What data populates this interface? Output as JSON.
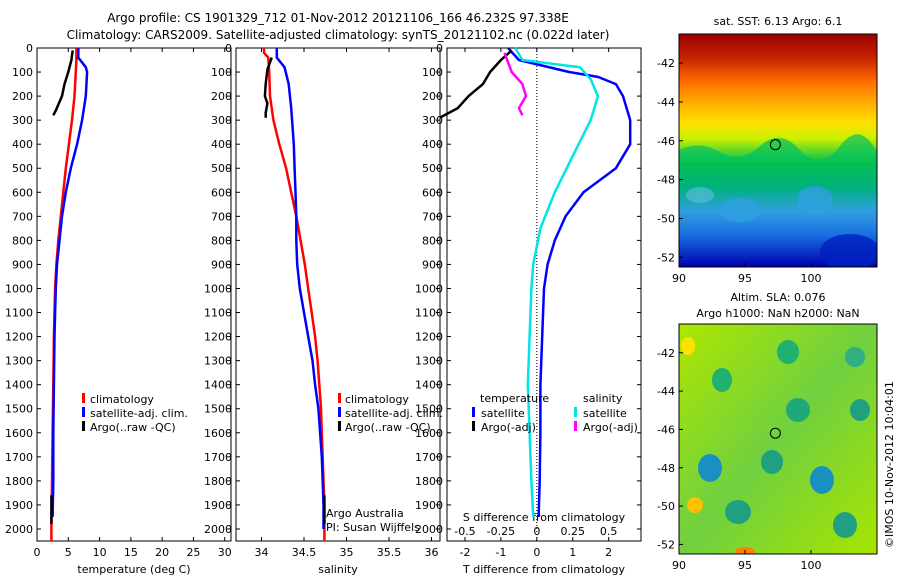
{
  "header": {
    "title_line1": "Argo profile: CS 1901329_712 01-Nov-2012 20121106_166 46.232S 97.338E",
    "title_line2": "Climatology: CARS2009. Satellite-adjusted climatology: synTS_20121102.nc (0.022d later)"
  },
  "colors": {
    "climatology": "#ff0000",
    "satellite_adj": "#0000ff",
    "argo": "#000000",
    "salinity_satellite": "#00e5e5",
    "salinity_argo": "#ff00ff"
  },
  "depth_axis": {
    "ticks": [
      "0",
      "100",
      "200",
      "300",
      "400",
      "500",
      "600",
      "700",
      "800",
      "900",
      "1000",
      "1100",
      "1200",
      "1300",
      "1400",
      "1500",
      "1600",
      "1700",
      "1800",
      "1900",
      "2000"
    ],
    "ylim": [
      0,
      2050
    ],
    "reversed": true
  },
  "chart_data": [
    {
      "type": "line",
      "name": "temperature-panel",
      "xlabel": "temperature (deg C)",
      "xlim": [
        0,
        31
      ],
      "xticks": [
        "0",
        "5",
        "10",
        "15",
        "20",
        "25",
        "30"
      ],
      "legend": [
        "climatology",
        "satellite-adj. clim.",
        "Argo(..raw -QC)"
      ],
      "series": [
        {
          "name": "climatology",
          "color": "#ff0000",
          "points": [
            [
              6.3,
              0
            ],
            [
              6.3,
              50
            ],
            [
              6.2,
              100
            ],
            [
              6.0,
              200
            ],
            [
              5.6,
              300
            ],
            [
              5.1,
              400
            ],
            [
              4.6,
              500
            ],
            [
              4.2,
              600
            ],
            [
              3.8,
              700
            ],
            [
              3.4,
              800
            ],
            [
              3.1,
              900
            ],
            [
              2.9,
              1000
            ],
            [
              2.8,
              1100
            ],
            [
              2.7,
              1200
            ],
            [
              2.6,
              1400
            ],
            [
              2.5,
              1600
            ],
            [
              2.4,
              1800
            ],
            [
              2.3,
              2000
            ],
            [
              2.3,
              2050
            ]
          ]
        },
        {
          "name": "satellite-adj. clim.",
          "color": "#0000ff",
          "points": [
            [
              6.6,
              0
            ],
            [
              6.6,
              40
            ],
            [
              7.8,
              80
            ],
            [
              8.0,
              100
            ],
            [
              7.8,
              200
            ],
            [
              7.2,
              300
            ],
            [
              6.4,
              400
            ],
            [
              5.4,
              500
            ],
            [
              4.6,
              600
            ],
            [
              4.0,
              700
            ],
            [
              3.6,
              800
            ],
            [
              3.2,
              900
            ],
            [
              3.0,
              1000
            ],
            [
              2.9,
              1100
            ],
            [
              2.8,
              1200
            ],
            [
              2.7,
              1400
            ],
            [
              2.6,
              1600
            ],
            [
              2.6,
              1800
            ],
            [
              2.5,
              1950
            ]
          ]
        },
        {
          "name": "Argo(..raw -QC)",
          "color": "#000000",
          "points": [
            [
              5.7,
              10
            ],
            [
              5.5,
              50
            ],
            [
              5.0,
              100
            ],
            [
              4.4,
              150
            ],
            [
              4.0,
              200
            ],
            [
              3.5,
              230
            ],
            [
              3.0,
              260
            ],
            [
              2.6,
              280
            ]
          ]
        },
        {
          "name": "Argo-deep",
          "color": "#000000",
          "points": [
            [
              2.3,
              1860
            ],
            [
              2.3,
              1980
            ]
          ]
        }
      ]
    },
    {
      "type": "line",
      "name": "salinity-panel",
      "xlabel": "salinity",
      "xlim": [
        33.7,
        36.1
      ],
      "xticks": [
        "34",
        "34.5",
        "35",
        "35.5",
        "36"
      ],
      "legend": [
        "climatology",
        "satellite-adj. clim.",
        "Argo(..raw -QC)"
      ],
      "annotations": [
        "Argo Australia",
        "PI: Susan Wijffels"
      ],
      "series": [
        {
          "name": "climatology",
          "color": "#ff0000",
          "points": [
            [
              34.03,
              0
            ],
            [
              34.03,
              20
            ],
            [
              34.08,
              40
            ],
            [
              34.09,
              100
            ],
            [
              34.1,
              200
            ],
            [
              34.14,
              300
            ],
            [
              34.21,
              400
            ],
            [
              34.29,
              500
            ],
            [
              34.35,
              600
            ],
            [
              34.41,
              700
            ],
            [
              34.46,
              800
            ],
            [
              34.51,
              900
            ],
            [
              34.55,
              1000
            ],
            [
              34.59,
              1100
            ],
            [
              34.63,
              1200
            ],
            [
              34.66,
              1300
            ],
            [
              34.68,
              1400
            ],
            [
              34.7,
              1500
            ],
            [
              34.71,
              1600
            ],
            [
              34.72,
              1700
            ],
            [
              34.73,
              1800
            ],
            [
              34.74,
              1900
            ],
            [
              34.74,
              2050
            ]
          ]
        },
        {
          "name": "satellite-adj. clim.",
          "color": "#0000ff",
          "points": [
            [
              34.18,
              0
            ],
            [
              34.18,
              40
            ],
            [
              34.27,
              80
            ],
            [
              34.32,
              150
            ],
            [
              34.35,
              250
            ],
            [
              34.38,
              400
            ],
            [
              34.39,
              500
            ],
            [
              34.4,
              600
            ],
            [
              34.41,
              700
            ],
            [
              34.41,
              800
            ],
            [
              34.42,
              900
            ],
            [
              34.45,
              1000
            ],
            [
              34.5,
              1100
            ],
            [
              34.55,
              1200
            ],
            [
              34.6,
              1300
            ],
            [
              34.63,
              1400
            ],
            [
              34.67,
              1500
            ],
            [
              34.69,
              1600
            ],
            [
              34.71,
              1700
            ],
            [
              34.72,
              1800
            ],
            [
              34.73,
              1900
            ],
            [
              34.73,
              2000
            ]
          ]
        },
        {
          "name": "Argo(..raw -QC)",
          "color": "#000000",
          "points": [
            [
              34.12,
              40
            ],
            [
              34.07,
              90
            ],
            [
              34.05,
              150
            ],
            [
              34.04,
              200
            ],
            [
              34.07,
              230
            ],
            [
              34.05,
              270
            ],
            [
              34.05,
              290
            ]
          ]
        },
        {
          "name": "Argo-deep",
          "color": "#000000",
          "points": [
            [
              34.74,
              1860
            ],
            [
              34.74,
              1980
            ]
          ]
        }
      ]
    },
    {
      "type": "line",
      "name": "difference-panel",
      "xlabel": "T difference from climatology",
      "xlabel_top": "S difference from climatology",
      "xlim": [
        -2.5,
        2.9
      ],
      "xticks": [
        "-2",
        "-1",
        "0",
        "1",
        "2"
      ],
      "xticks_salinity": [
        "-0.5",
        "-0.25",
        "0",
        "0.25",
        "0.5"
      ],
      "legend_headers": [
        "temperature",
        "salinity"
      ],
      "legend": [
        "satellite",
        "Argo(-adj)",
        "satellite",
        "Argo(-adj)"
      ],
      "series": [
        {
          "name": "temperature satellite",
          "color": "#0000ff",
          "points": [
            [
              -0.8,
              0
            ],
            [
              -0.5,
              50
            ],
            [
              0.9,
              100
            ],
            [
              1.7,
              120
            ],
            [
              2.2,
              150
            ],
            [
              2.4,
              200
            ],
            [
              2.6,
              300
            ],
            [
              2.6,
              400
            ],
            [
              2.2,
              500
            ],
            [
              1.3,
              600
            ],
            [
              0.8,
              700
            ],
            [
              0.5,
              800
            ],
            [
              0.3,
              900
            ],
            [
              0.2,
              1000
            ],
            [
              0.15,
              1200
            ],
            [
              0.1,
              1400
            ],
            [
              0.1,
              1600
            ],
            [
              0.08,
              1800
            ],
            [
              0.05,
              1950
            ]
          ]
        },
        {
          "name": "temperature Argo(-adj)",
          "color": "#000000",
          "points": [
            [
              -0.7,
              10
            ],
            [
              -1.0,
              50
            ],
            [
              -1.3,
              100
            ],
            [
              -1.5,
              150
            ],
            [
              -1.9,
              200
            ],
            [
              -2.2,
              250
            ],
            [
              -2.7,
              290
            ]
          ]
        },
        {
          "name": "salinity satellite",
          "color": "#00e5e5",
          "points": [
            [
              -0.6,
              0
            ],
            [
              -0.4,
              50
            ],
            [
              1.2,
              80
            ],
            [
              1.5,
              130
            ],
            [
              1.7,
              200
            ],
            [
              1.5,
              300
            ],
            [
              1.0,
              450
            ],
            [
              0.5,
              600
            ],
            [
              0.1,
              750
            ],
            [
              -0.1,
              900
            ],
            [
              -0.15,
              1000
            ],
            [
              -0.2,
              1200
            ],
            [
              -0.25,
              1400
            ],
            [
              -0.2,
              1600
            ],
            [
              -0.15,
              1800
            ],
            [
              -0.1,
              1950
            ]
          ]
        },
        {
          "name": "salinity Argo(-adj)",
          "color": "#ff00ff",
          "points": [
            [
              -0.9,
              20
            ],
            [
              -0.8,
              60
            ],
            [
              -0.7,
              100
            ],
            [
              -0.4,
              150
            ],
            [
              -0.3,
              200
            ],
            [
              -0.5,
              250
            ],
            [
              -0.4,
              280
            ]
          ]
        }
      ]
    },
    {
      "type": "heatmap",
      "name": "sst-map",
      "title": "sat. SST: 6.13  Argo: 6.1",
      "xlim": [
        90,
        105
      ],
      "ylim": [
        -52.5,
        -40.5
      ],
      "xticks": [
        "90",
        "95",
        "100"
      ],
      "yticks": [
        "-42",
        "-44",
        "-46",
        "-48",
        "-50",
        "-52"
      ],
      "marker": {
        "lon": 97.3,
        "lat": -46.2
      }
    },
    {
      "type": "heatmap",
      "name": "sla-map",
      "title_line1": "Altim. SLA: 0.076",
      "title_line2": "Argo h1000: NaN  h2000: NaN",
      "xlim": [
        90,
        105
      ],
      "ylim": [
        -52.5,
        -40.5
      ],
      "xticks": [
        "90",
        "95",
        "100"
      ],
      "yticks": [
        "-42",
        "-44",
        "-46",
        "-48",
        "-50",
        "-52"
      ],
      "marker": {
        "lon": 97.3,
        "lat": -46.2
      }
    }
  ],
  "watermark": "©IMOS 10-Nov-2012 10:04:01"
}
